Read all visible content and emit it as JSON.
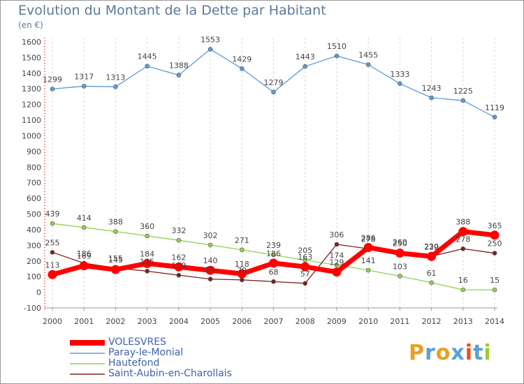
{
  "title": "Evolution du Montant de la Dette par Habitant",
  "subtitle": "(en €)",
  "logo": {
    "text": "Proxiti",
    "colors": [
      "#e8a020",
      "#5aa0d8",
      "#e8a020",
      "#5aa0d8",
      "#e85020",
      "#5aa0d8",
      "#a0c830"
    ]
  },
  "chart_data": {
    "type": "line",
    "title": "Evolution du Montant de la Dette par Habitant",
    "ylabel": "(en €)",
    "xlabel": "",
    "x": [
      "2000",
      "2001",
      "2002",
      "2003",
      "2004",
      "2005",
      "2006",
      "2007",
      "2008",
      "2009",
      "2010",
      "2011",
      "2012",
      "2013",
      "2014"
    ],
    "ylim": [
      -100,
      1600
    ],
    "yticks": [
      -100,
      0,
      100,
      200,
      300,
      400,
      500,
      600,
      700,
      800,
      900,
      1000,
      1100,
      1200,
      1300,
      1400,
      1500,
      1600
    ],
    "grid": "vertical dashed",
    "legend_position": "bottom-left",
    "series": [
      {
        "name": "VOLESVRES",
        "color": "#ff0000",
        "values": [
          113,
          169,
          145,
          184,
          162,
          140,
          118,
          186,
          163,
          129,
          286,
          250,
          229,
          388,
          365
        ],
        "labels": [
          "113",
          "169",
          "145",
          "184",
          "162",
          "140",
          "118",
          "186",
          "163",
          "129",
          "286",
          "250",
          "229",
          "388",
          "365"
        ]
      },
      {
        "name": "Paray-le-Monial",
        "color": "#5b9bd5",
        "values": [
          1299,
          1317,
          1313,
          1445,
          1388,
          1553,
          1429,
          1279,
          1443,
          1510,
          1455,
          1333,
          1243,
          1225,
          1119
        ],
        "labels": [
          "1299",
          "1317",
          "1313",
          "1445",
          "1388",
          "1553",
          "1429",
          "1279",
          "1443",
          "1510",
          "1455",
          "1333",
          "1243",
          "1225",
          "1119"
        ]
      },
      {
        "name": "Hautefond",
        "color": "#92d050",
        "values": [
          439,
          414,
          388,
          360,
          332,
          302,
          271,
          239,
          205,
          174,
          141,
          103,
          61,
          16,
          15
        ],
        "labels": [
          "439",
          "414",
          "388",
          "360",
          "332",
          "302",
          "271",
          "239",
          "205",
          "174",
          "141",
          "103",
          "61",
          "16",
          "15"
        ]
      },
      {
        "name": "Saint-Aubin-en-Charollais",
        "color": "#7f1f1f",
        "values": [
          255,
          186,
          155,
          135,
          109,
          84,
          79,
          68,
          57,
          306,
          278,
          260,
          230,
          278,
          250
        ],
        "labels": [
          "255",
          "186",
          "155",
          "135",
          "109",
          "84",
          "79",
          "68",
          "57",
          "306",
          "278",
          "260",
          "230",
          "278",
          "250"
        ]
      }
    ]
  }
}
